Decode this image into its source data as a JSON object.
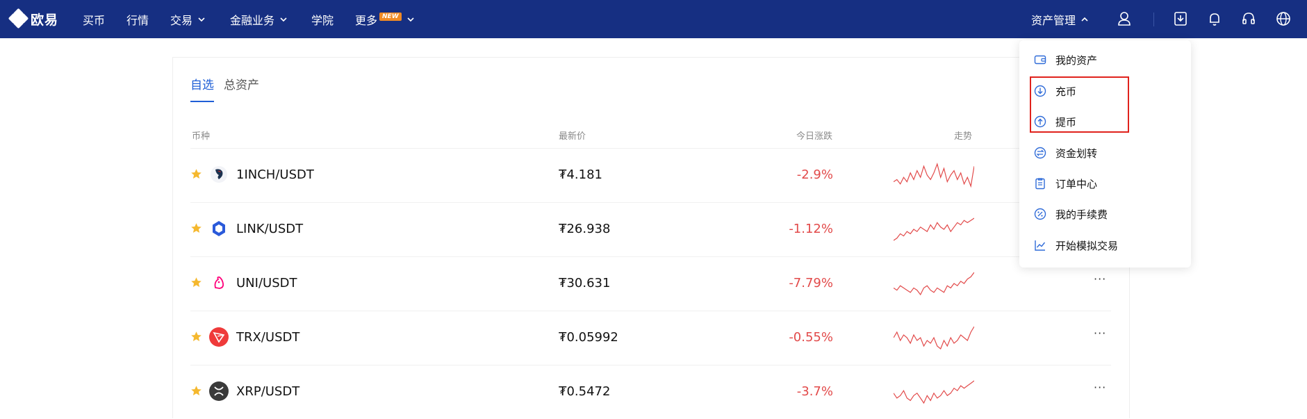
{
  "brand": {
    "name": "欧易"
  },
  "nav": {
    "buy": "买币",
    "market": "行情",
    "trade": "交易",
    "finance": "金融业务",
    "academy": "学院",
    "more": "更多",
    "more_badge": "NEW",
    "assets": "资产管理"
  },
  "icons": {
    "user": "user-icon",
    "download": "download-app-icon",
    "bell": "bell-icon",
    "support": "headset-icon",
    "lang": "globe-icon"
  },
  "tabs": [
    {
      "label": "自选",
      "active": true
    },
    {
      "label": "总资产",
      "active": false
    }
  ],
  "table": {
    "headers": {
      "coin": "币种",
      "price": "最新价",
      "change": "今日涨跌",
      "trend": "走势"
    },
    "rows": [
      {
        "pair": "1INCH/USDT",
        "price": "₮4.181",
        "change": "-2.9%",
        "icon": "1inch-icon",
        "trend": [
          5,
          6,
          4,
          7,
          5,
          9,
          6,
          10,
          7,
          12,
          8,
          6,
          9,
          13,
          7,
          11,
          5,
          8,
          10,
          6,
          9,
          4,
          7,
          3,
          12
        ]
      },
      {
        "pair": "LINK/USDT",
        "price": "₮26.938",
        "change": "-1.12%",
        "icon": "link-icon",
        "trend": [
          3,
          4,
          6,
          5,
          7,
          6,
          8,
          7,
          9,
          8,
          7,
          10,
          8,
          11,
          9,
          8,
          10,
          7,
          9,
          11,
          10,
          12,
          11,
          12,
          13
        ]
      },
      {
        "pair": "UNI/USDT",
        "price": "₮30.631",
        "change": "-7.79%",
        "icon": "uni-icon",
        "trend": [
          6,
          5,
          7,
          6,
          5,
          4,
          6,
          5,
          3,
          6,
          7,
          5,
          4,
          6,
          5,
          4,
          7,
          6,
          8,
          7,
          9,
          8,
          10,
          11,
          13
        ]
      },
      {
        "pair": "TRX/USDT",
        "price": "₮0.05992",
        "change": "-0.55%",
        "icon": "trx-icon",
        "trend": [
          9,
          11,
          8,
          10,
          9,
          7,
          10,
          8,
          9,
          6,
          8,
          7,
          9,
          6,
          5,
          8,
          6,
          9,
          7,
          8,
          10,
          9,
          8,
          11,
          13
        ]
      },
      {
        "pair": "XRP/USDT",
        "price": "₮0.5472",
        "change": "-3.7%",
        "icon": "xrp-icon",
        "trend": [
          8,
          6,
          7,
          9,
          6,
          5,
          7,
          8,
          6,
          4,
          7,
          5,
          8,
          6,
          7,
          9,
          7,
          8,
          10,
          9,
          11,
          10,
          11,
          12,
          13
        ]
      }
    ],
    "more_label": "···"
  },
  "dropdown": {
    "items": [
      {
        "label": "我的资产",
        "icon": "wallet-icon"
      },
      {
        "label": "充币",
        "icon": "deposit-icon"
      },
      {
        "label": "提币",
        "icon": "withdraw-icon"
      },
      {
        "label": "资金划转",
        "icon": "transfer-icon"
      },
      {
        "label": "订单中心",
        "icon": "order-icon"
      },
      {
        "label": "我的手续费",
        "icon": "fee-icon"
      },
      {
        "label": "开始模拟交易",
        "icon": "chart-icon"
      }
    ]
  },
  "colors": {
    "nav_bg": "#162f82",
    "accent": "#1f5fd6",
    "down": "#e24a4a",
    "star": "#f5b82e",
    "highlight": "#e0221c"
  }
}
